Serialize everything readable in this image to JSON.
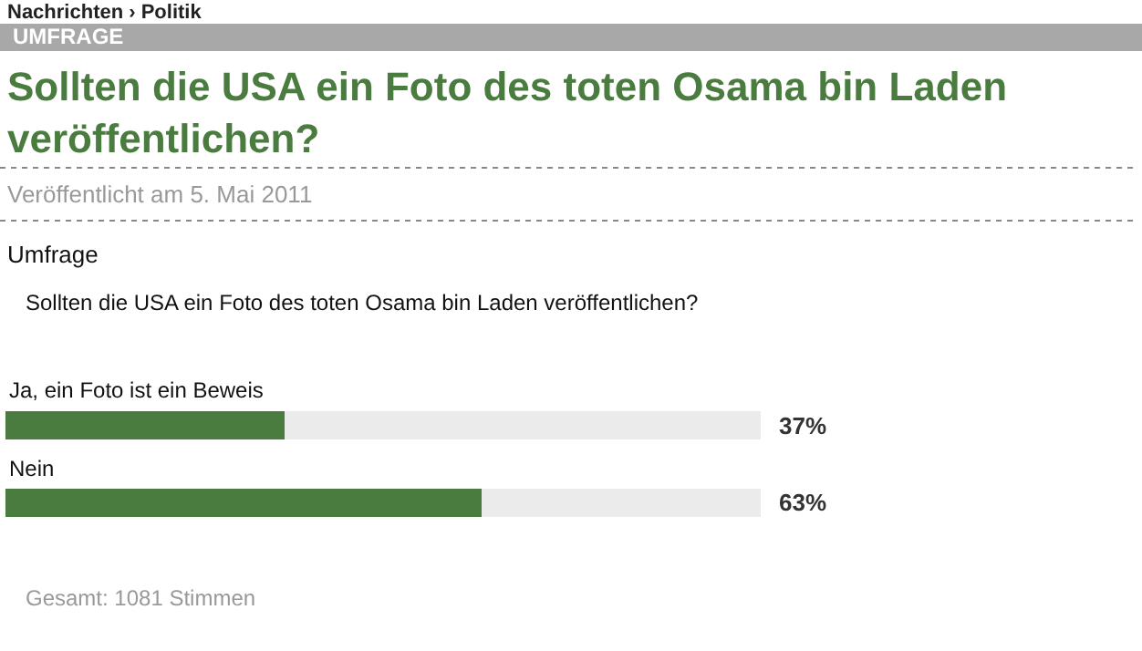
{
  "chart_data": {
    "type": "bar",
    "orientation": "horizontal",
    "stacked": true,
    "title": "Sollten die USA ein Foto des toten Osama bin Laden veröffentlichen?",
    "subtitle": "Veröffentlicht am 5. Mai 2011",
    "annotations": [
      "Nachrichten › Politik",
      "UMFRAGE",
      "Umfrage",
      "Sollten die USA ein Foto des toten Osama bin Laden veröffentlichen?",
      "Gesamt: 1081 Stimmen"
    ],
    "categories": [
      "Ja, ein Foto ist ein Beweis",
      "Nein"
    ],
    "series": [
      {
        "color": "#4a7c3f",
        "values": [
          37,
          63
        ],
        "value_labels": [
          "37%",
          "63%"
        ]
      },
      {
        "color": "#ebebeb",
        "values": [
          63,
          37
        ]
      }
    ],
    "xlim": [
      0,
      100
    ],
    "tick_labels": false
  }
}
